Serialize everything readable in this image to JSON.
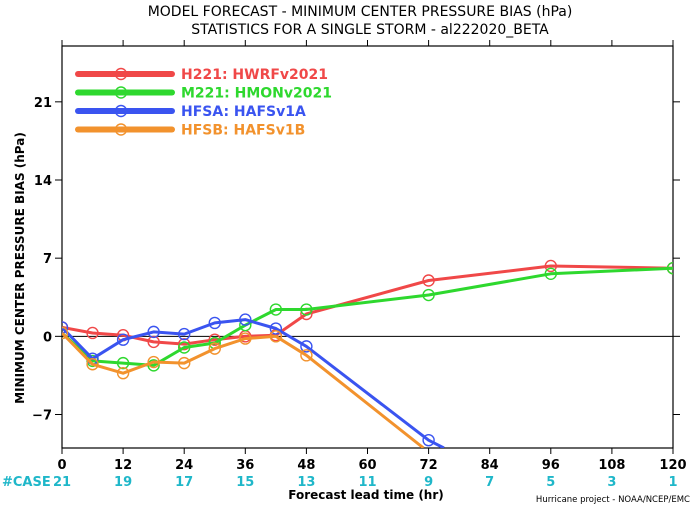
{
  "chart_data": {
    "type": "line",
    "title": "MODEL FORECAST - MINIMUM CENTER PRESSURE BIAS (hPa)",
    "subtitle": "STATISTICS FOR A SINGLE STORM - al222020_BETA",
    "xlabel": "Forecast lead time (hr)",
    "ylabel": "MINIMUM CENTER PRESSURE BIAS (hPa)",
    "xlim": [
      0,
      120
    ],
    "ylim": [
      -10,
      26
    ],
    "xticks": [
      0,
      12,
      24,
      36,
      48,
      60,
      72,
      84,
      96,
      108,
      120
    ],
    "yticks": [
      -7,
      0,
      7,
      14,
      21
    ],
    "grid": false,
    "legend_position": "top-left",
    "case_label": "#CASE",
    "case_counts": [
      "21",
      "19",
      "17",
      "15",
      "13",
      "11",
      "9",
      "7",
      "5",
      "3",
      "1"
    ],
    "credit": "Hurricane project - NOAA/NCEP/EMC",
    "series": [
      {
        "name": "H221: HWRFv2021",
        "color": "#f04848",
        "x": [
          0,
          6,
          12,
          18,
          24,
          30,
          36,
          42,
          48,
          72,
          96,
          120
        ],
        "y": [
          0.8,
          0.3,
          0.1,
          -0.5,
          -0.7,
          -0.3,
          0.0,
          0.1,
          2.0,
          5.0,
          6.3,
          6.1
        ]
      },
      {
        "name": "M221: HMONv2021",
        "color": "#2ed82e",
        "x": [
          0,
          6,
          12,
          18,
          24,
          30,
          36,
          42,
          48,
          72,
          96,
          120
        ],
        "y": [
          0.3,
          -2.2,
          -2.4,
          -2.6,
          -1.0,
          -0.6,
          1.0,
          2.4,
          2.4,
          3.7,
          5.6,
          6.1
        ]
      },
      {
        "name": "HFSA: HAFSv1A",
        "color": "#3a54f0",
        "x": [
          0,
          6,
          12,
          18,
          24,
          30,
          36,
          42,
          48,
          72,
          75
        ],
        "y": [
          0.8,
          -2.0,
          -0.3,
          0.4,
          0.2,
          1.2,
          1.5,
          0.7,
          -0.9,
          -9.3,
          -10.0
        ]
      },
      {
        "name": "HFSB: HAFSv1B",
        "color": "#f2922d",
        "x": [
          0,
          6,
          12,
          18,
          24,
          30,
          36,
          42,
          48,
          71
        ],
        "y": [
          0.3,
          -2.5,
          -3.3,
          -2.3,
          -2.4,
          -1.1,
          -0.2,
          0.0,
          -1.7,
          -10.0
        ]
      }
    ],
    "marker_counts": [
      12,
      12,
      10,
      9
    ]
  }
}
